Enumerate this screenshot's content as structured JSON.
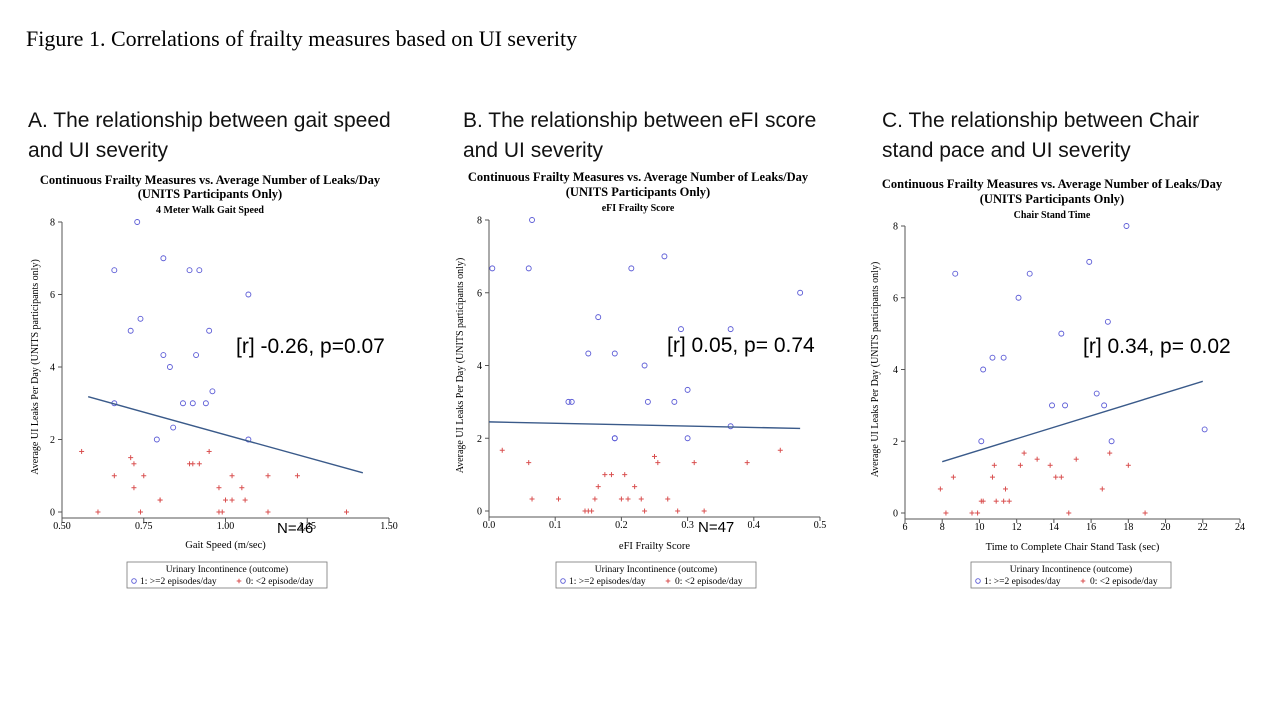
{
  "figure_title": "Figure 1. Correlations of frailty measures based on UI severity",
  "legend_title": "Urinary Incontinence (outcome)",
  "legend_items": [
    {
      "label": "1: >=2 episodes/day",
      "marker": "circle",
      "color": "#5b5bd6"
    },
    {
      "label": "0: <2 episode/day",
      "marker": "plus",
      "color": "#d94f4f"
    }
  ],
  "colors": {
    "fit_line": "#3a5a8a",
    "circle": "#5b5bd6",
    "plus": "#d94f4f"
  },
  "chart_data": [
    {
      "type": "scatter",
      "caption": [
        "A. The relationship between gait speed",
        "and UI severity"
      ],
      "title": "Continuous Frailty Measures vs. Average Number of Leaks/Day",
      "subtitle": "(UNITS Participants Only)",
      "panel_title": "4 Meter Walk Gait Speed",
      "xlabel": "Gait Speed (m/sec)",
      "ylabel": "Average UI Leaks Per Day (UNITS participants only)",
      "xticks": [
        "0.50",
        "0.75",
        "1.00",
        "1.25",
        "1.50"
      ],
      "yticks": [
        "0",
        "2",
        "4",
        "6",
        "8"
      ],
      "xlim": [
        0.5,
        1.5
      ],
      "ylim": [
        0,
        8
      ],
      "annotation": "[r] -0.26, p=0.07",
      "n_label": "N=46",
      "fit": [
        [
          0.58,
          3.18
        ],
        [
          1.42,
          1.08
        ]
      ],
      "series": [
        {
          "name": "1: >=2 episodes/day",
          "marker": "circle",
          "points": [
            [
              0.73,
              8
            ],
            [
              0.81,
              7
            ],
            [
              0.66,
              6.67
            ],
            [
              0.89,
              6.67
            ],
            [
              0.92,
              6.67
            ],
            [
              1.07,
              6
            ],
            [
              0.74,
              5.33
            ],
            [
              0.71,
              5
            ],
            [
              0.95,
              5
            ],
            [
              0.81,
              4.33
            ],
            [
              0.91,
              4.33
            ],
            [
              0.83,
              4
            ],
            [
              0.96,
              3.33
            ],
            [
              0.66,
              3
            ],
            [
              0.87,
              3
            ],
            [
              0.9,
              3
            ],
            [
              0.94,
              3
            ],
            [
              0.84,
              2.33
            ],
            [
              0.79,
              2
            ],
            [
              1.07,
              2
            ]
          ]
        },
        {
          "name": "0: <2 episode/day",
          "marker": "plus",
          "points": [
            [
              0.56,
              1.67
            ],
            [
              0.95,
              1.67
            ],
            [
              0.71,
              1.5
            ],
            [
              0.72,
              1.33
            ],
            [
              0.89,
              1.33
            ],
            [
              0.9,
              1.33
            ],
            [
              0.92,
              1.33
            ],
            [
              0.66,
              1
            ],
            [
              0.75,
              1
            ],
            [
              1.02,
              1
            ],
            [
              1.13,
              1
            ],
            [
              1.22,
              1
            ],
            [
              0.72,
              0.67
            ],
            [
              0.98,
              0.67
            ],
            [
              1.05,
              0.67
            ],
            [
              0.8,
              0.33
            ],
            [
              0.8,
              0.33
            ],
            [
              1.0,
              0.33
            ],
            [
              1.02,
              0.33
            ],
            [
              1.06,
              0.33
            ],
            [
              0.61,
              0
            ],
            [
              0.74,
              0
            ],
            [
              0.98,
              0
            ],
            [
              0.99,
              0
            ],
            [
              1.13,
              0
            ],
            [
              1.37,
              0
            ]
          ]
        }
      ]
    },
    {
      "type": "scatter",
      "caption": [
        "B. The relationship between eFI score",
        "and UI severity"
      ],
      "title": "Continuous Frailty Measures vs. Average Number of Leaks/Day",
      "subtitle": "(UNITS Participants Only)",
      "panel_title": "eFI Frailty Score",
      "xlabel": "eFI Frailty Score",
      "ylabel": "Average UI Leaks Per Day (UNITS participants only)",
      "xticks": [
        "0.0",
        "0.1",
        "0.2",
        "0.3",
        "0.4",
        "0.5"
      ],
      "yticks": [
        "0",
        "2",
        "4",
        "6",
        "8"
      ],
      "xlim": [
        0,
        0.5
      ],
      "ylim": [
        0,
        8
      ],
      "annotation": "[r] 0.05, p= 0.74",
      "n_label": "N=47",
      "fit": [
        [
          0.0,
          2.45
        ],
        [
          0.47,
          2.27
        ]
      ],
      "series": [
        {
          "name": "1: >=2 episodes/day",
          "marker": "circle",
          "points": [
            [
              0.065,
              8
            ],
            [
              0.265,
              7
            ],
            [
              0.005,
              6.67
            ],
            [
              0.06,
              6.67
            ],
            [
              0.215,
              6.67
            ],
            [
              0.47,
              6
            ],
            [
              0.165,
              5.33
            ],
            [
              0.29,
              5
            ],
            [
              0.365,
              5
            ],
            [
              0.15,
              4.33
            ],
            [
              0.19,
              4.33
            ],
            [
              0.235,
              4
            ],
            [
              0.3,
              3.33
            ],
            [
              0.12,
              3
            ],
            [
              0.125,
              3
            ],
            [
              0.24,
              3
            ],
            [
              0.28,
              3
            ],
            [
              0.365,
              2.33
            ],
            [
              0.19,
              2
            ],
            [
              0.19,
              2
            ],
            [
              0.3,
              2
            ]
          ]
        },
        {
          "name": "0: <2 episode/day",
          "marker": "plus",
          "points": [
            [
              0.02,
              1.67
            ],
            [
              0.44,
              1.67
            ],
            [
              0.25,
              1.5
            ],
            [
              0.06,
              1.33
            ],
            [
              0.255,
              1.33
            ],
            [
              0.31,
              1.33
            ],
            [
              0.39,
              1.33
            ],
            [
              0.175,
              1
            ],
            [
              0.185,
              1
            ],
            [
              0.205,
              1
            ],
            [
              0.165,
              0.67
            ],
            [
              0.22,
              0.67
            ],
            [
              0.065,
              0.33
            ],
            [
              0.105,
              0.33
            ],
            [
              0.16,
              0.33
            ],
            [
              0.2,
              0.33
            ],
            [
              0.21,
              0.33
            ],
            [
              0.23,
              0.33
            ],
            [
              0.27,
              0.33
            ],
            [
              0.145,
              0
            ],
            [
              0.155,
              0
            ],
            [
              0.15,
              0
            ],
            [
              0.235,
              0
            ],
            [
              0.285,
              0
            ],
            [
              0.325,
              0
            ]
          ]
        }
      ]
    },
    {
      "type": "scatter",
      "caption": [
        "C. The relationship between Chair",
        "stand pace and UI severity"
      ],
      "title": "Continuous Frailty Measures vs. Average Number of Leaks/Day",
      "subtitle": "(UNITS Participants Only)",
      "panel_title": "Chair Stand Time",
      "xlabel": "Time to Complete Chair Stand Task (sec)",
      "ylabel": "Average UI Leaks Per Day (UNITS participants only)",
      "xticks": [
        "6",
        "8",
        "10",
        "12",
        "14",
        "16",
        "18",
        "20",
        "22",
        "24"
      ],
      "yticks": [
        "0",
        "2",
        "4",
        "6",
        "8"
      ],
      "xlim": [
        6,
        24
      ],
      "ylim": [
        0,
        8
      ],
      "annotation": "[r] 0.34, p= 0.02",
      "n_label": "",
      "fit": [
        [
          8,
          1.43
        ],
        [
          22,
          3.67
        ]
      ],
      "series": [
        {
          "name": "1: >=2 episodes/day",
          "marker": "circle",
          "points": [
            [
              17.9,
              8
            ],
            [
              15.9,
              7
            ],
            [
              8.7,
              6.67
            ],
            [
              12.7,
              6.67
            ],
            [
              12.1,
              6
            ],
            [
              16.9,
              5.33
            ],
            [
              14.4,
              5
            ],
            [
              10.7,
              4.33
            ],
            [
              11.3,
              4.33
            ],
            [
              10.2,
              4
            ],
            [
              16.3,
              3.33
            ],
            [
              13.9,
              3
            ],
            [
              14.6,
              3
            ],
            [
              16.7,
              3
            ],
            [
              10.1,
              2
            ],
            [
              17.1,
              2
            ],
            [
              22.1,
              2.33
            ]
          ]
        },
        {
          "name": "0: <2 episode/day",
          "marker": "plus",
          "points": [
            [
              12.4,
              1.67
            ],
            [
              17,
              1.67
            ],
            [
              13.1,
              1.5
            ],
            [
              15.2,
              1.5
            ],
            [
              10.8,
              1.33
            ],
            [
              12.2,
              1.33
            ],
            [
              13.8,
              1.33
            ],
            [
              18,
              1.33
            ],
            [
              8.6,
              1
            ],
            [
              10.7,
              1
            ],
            [
              14.1,
              1
            ],
            [
              14.4,
              1
            ],
            [
              7.9,
              0.67
            ],
            [
              11.4,
              0.67
            ],
            [
              16.6,
              0.67
            ],
            [
              10.1,
              0.33
            ],
            [
              10.2,
              0.33
            ],
            [
              10.9,
              0.33
            ],
            [
              11.3,
              0.33
            ],
            [
              11.6,
              0.33
            ],
            [
              8.2,
              0
            ],
            [
              9.6,
              0
            ],
            [
              9.9,
              0
            ],
            [
              14.8,
              0
            ],
            [
              18.9,
              0
            ]
          ]
        }
      ]
    }
  ]
}
